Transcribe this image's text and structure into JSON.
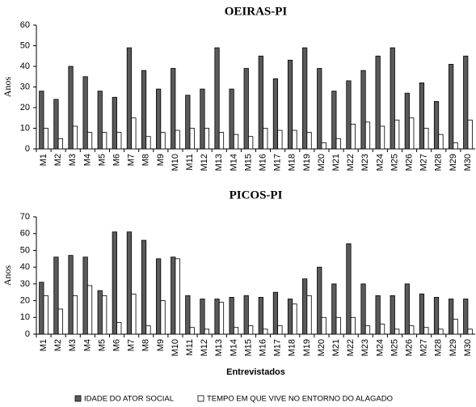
{
  "chart_data": [
    {
      "type": "bar",
      "title": "OEIRAS-PI",
      "y_label": "Anos",
      "categories": [
        "M1",
        "M2",
        "M3",
        "M4",
        "M5",
        "M6",
        "M7",
        "M8",
        "M9",
        "M10",
        "M11",
        "M12",
        "M13",
        "M14",
        "M15",
        "M16",
        "M17",
        "M18",
        "M19",
        "M20",
        "M21",
        "M22",
        "M23",
        "M24",
        "M25",
        "M26",
        "M27",
        "M28",
        "M29",
        "M30"
      ],
      "series": [
        {
          "name": "IDADE DO ATOR SOCIAL",
          "color": "#5a5a5a",
          "values": [
            28,
            24,
            40,
            35,
            28,
            25,
            49,
            38,
            29,
            39,
            26,
            29,
            49,
            29,
            39,
            45,
            34,
            43,
            49,
            39,
            28,
            33,
            38,
            45,
            49,
            27,
            32,
            23,
            41,
            45
          ]
        },
        {
          "name": "TEMPO EM QUE VIVE NO ENTORNO DO ALAGADO",
          "color": "#ffffff",
          "values": [
            10,
            5,
            11,
            8,
            8,
            8,
            15,
            6,
            8,
            9,
            10,
            10,
            8,
            7,
            6,
            10,
            9,
            9,
            8,
            3,
            5,
            12,
            13,
            11,
            14,
            15,
            10,
            7,
            3,
            14
          ]
        }
      ],
      "ylim": [
        0,
        60
      ],
      "yticks": [
        0,
        10,
        20,
        30,
        40,
        50,
        60
      ],
      "grid": false
    },
    {
      "type": "bar",
      "title": "PICOS-PI",
      "y_label": "Anos",
      "x_label": "Entrevistados",
      "categories": [
        "M1",
        "M2",
        "M3",
        "M4",
        "M5",
        "M6",
        "M7",
        "M8",
        "M9",
        "M10",
        "M11",
        "M12",
        "M13",
        "M14",
        "M15",
        "M16",
        "M17",
        "M18",
        "M19",
        "M20",
        "M21",
        "M22",
        "M23",
        "M24",
        "M25",
        "M26",
        "M27",
        "M28",
        "M29",
        "M30"
      ],
      "series": [
        {
          "color": "#5a5a5a",
          "values": [
            31,
            46,
            47,
            46,
            26,
            61,
            61,
            56,
            45,
            46,
            23,
            21,
            21,
            22,
            23,
            22,
            25,
            21,
            33,
            40,
            30,
            54,
            30,
            23,
            23,
            30,
            24,
            22,
            21,
            21
          ]
        },
        {
          "color": "#ffffff",
          "values": [
            23,
            15,
            23,
            29,
            23,
            7,
            24,
            5,
            20,
            45,
            4,
            3,
            19,
            4,
            5,
            3,
            5,
            18,
            23,
            10,
            10,
            10,
            5,
            6,
            3,
            5,
            4,
            3,
            9,
            3
          ]
        }
      ],
      "ylim": [
        0,
        70
      ],
      "yticks": [
        0,
        10,
        20,
        30,
        40,
        50,
        60,
        70
      ],
      "grid": false
    }
  ]
}
